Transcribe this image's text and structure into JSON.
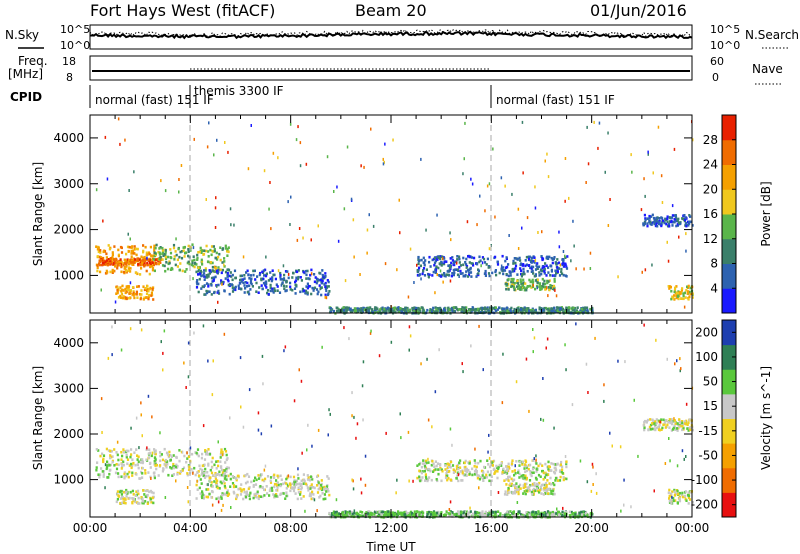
{
  "header": {
    "station": "Fort Hays West (fitACF)",
    "beam": "Beam 20",
    "date": "01/Jun/2016"
  },
  "noise_panel": {
    "left_label": "N.Sky",
    "right_label": "N.Search",
    "left_ticks": [
      "10^5",
      "10^0"
    ],
    "right_ticks": [
      "10^5",
      "10^0"
    ]
  },
  "freq_panel": {
    "left_label_1": "Freq.",
    "left_label_2": "[MHz]",
    "right_label": "Nave",
    "left_ticks": [
      "18",
      "8"
    ],
    "right_ticks": [
      "60",
      "0"
    ]
  },
  "cpid_panel": {
    "label": "CPID",
    "segments": [
      {
        "start_h": 0,
        "text": "normal (fast) 151 IF"
      },
      {
        "start_h": 4.0,
        "text": "themis 3300 IF"
      },
      {
        "start_h": 16.0,
        "text": "normal (fast) 151 IF"
      }
    ]
  },
  "colors": {
    "power": [
      "#1a1aff",
      "#2d62b0",
      "#3a7f6a",
      "#5ab54a",
      "#f0c81e",
      "#f5a000",
      "#f06c00",
      "#e82000"
    ],
    "velocity": [
      "#e81010",
      "#f06c00",
      "#f5a000",
      "#f0d020",
      "#c8c8c8",
      "#5ac83c",
      "#2f7f55",
      "#1e3fb0"
    ]
  },
  "chart_data": [
    {
      "type": "heatmap",
      "name": "power",
      "ylabel": "Slant Range [km]",
      "ylim": [
        180,
        4500
      ],
      "y_ticks": [
        1000,
        2000,
        3000,
        4000
      ],
      "xlim": [
        0,
        24
      ],
      "colorbar": {
        "label": "Power [dB]",
        "ticks": [
          "4",
          "8",
          "12",
          "16",
          "20",
          "24",
          "28"
        ],
        "range": [
          0,
          32
        ]
      },
      "vertical_markers_h": [
        4.0,
        16.0
      ],
      "features": [
        {
          "x0": 0.2,
          "x1": 2.6,
          "y0": 1050,
          "y1": 1700,
          "level": 5
        },
        {
          "x0": 0.3,
          "x1": 2.8,
          "y0": 1250,
          "y1": 1400,
          "level": 6
        },
        {
          "x0": 1.0,
          "x1": 2.5,
          "y0": 500,
          "y1": 800,
          "level": 5
        },
        {
          "x0": 2.5,
          "x1": 5.5,
          "y0": 1100,
          "y1": 1700,
          "level": 3
        },
        {
          "x0": 4.2,
          "x1": 9.5,
          "y0": 600,
          "y1": 1150,
          "level": 1
        },
        {
          "x0": 9.5,
          "x1": 20.0,
          "y0": 200,
          "y1": 330,
          "level": 2
        },
        {
          "x0": 13.0,
          "x1": 19.0,
          "y0": 1000,
          "y1": 1450,
          "level": 1
        },
        {
          "x0": 16.5,
          "x1": 18.5,
          "y0": 700,
          "y1": 950,
          "level": 3
        },
        {
          "x0": 22.0,
          "x1": 24.0,
          "y0": 2100,
          "y1": 2350,
          "level": 1
        },
        {
          "x0": 23.0,
          "x1": 24.0,
          "y0": 500,
          "y1": 800,
          "level": 4
        }
      ]
    },
    {
      "type": "heatmap",
      "name": "velocity",
      "ylabel": "Slant Range [km]",
      "ylim": [
        180,
        4500
      ],
      "y_ticks": [
        1000,
        2000,
        3000,
        4000
      ],
      "xlim": [
        0,
        24
      ],
      "x_ticks": [
        "00:00",
        "04:00",
        "08:00",
        "12:00",
        "16:00",
        "20:00",
        "00:00"
      ],
      "xlabel": "Time UT",
      "colorbar": {
        "label": "Velocity [m s^-1]",
        "ticks": [
          "-200",
          "-100",
          "-50",
          "-15",
          "15",
          "50",
          "100",
          "200"
        ]
      },
      "vertical_markers_h": [
        4.0,
        16.0
      ],
      "features": [
        {
          "x0": 0.2,
          "x1": 2.6,
          "y0": 1050,
          "y1": 1700,
          "level": 4
        },
        {
          "x0": 1.0,
          "x1": 2.5,
          "y0": 500,
          "y1": 800,
          "level": 4
        },
        {
          "x0": 2.5,
          "x1": 5.5,
          "y0": 1100,
          "y1": 1700,
          "level": 4
        },
        {
          "x0": 4.2,
          "x1": 9.5,
          "y0": 600,
          "y1": 1150,
          "level": 4
        },
        {
          "x0": 9.5,
          "x1": 20.0,
          "y0": 200,
          "y1": 330,
          "level": 5
        },
        {
          "x0": 13.0,
          "x1": 19.0,
          "y0": 1000,
          "y1": 1450,
          "level": 4
        },
        {
          "x0": 16.5,
          "x1": 18.5,
          "y0": 700,
          "y1": 950,
          "level": 4
        },
        {
          "x0": 22.0,
          "x1": 24.0,
          "y0": 2100,
          "y1": 2350,
          "level": 4
        },
        {
          "x0": 23.0,
          "x1": 24.0,
          "y0": 500,
          "y1": 800,
          "level": 4
        }
      ]
    }
  ]
}
